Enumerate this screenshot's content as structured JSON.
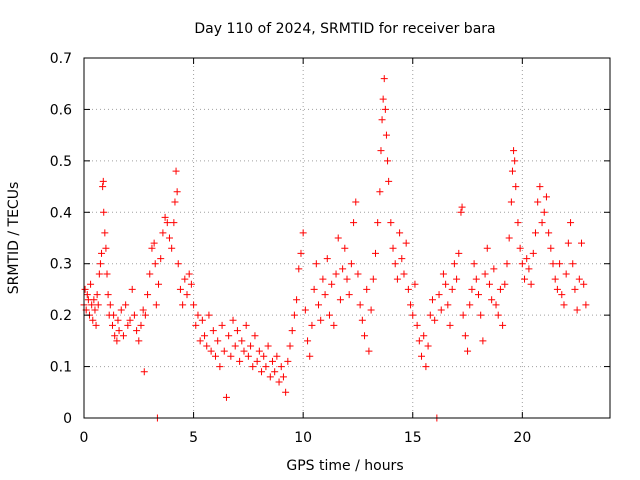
{
  "chart_data": {
    "type": "scatter",
    "title": "Day 110 of 2024, SRMTID for receiver bara",
    "xlabel": "GPS time / hours",
    "ylabel": "SRMTID / TECUs",
    "xlim": [
      0,
      24
    ],
    "ylim": [
      0,
      0.7
    ],
    "xticks": [
      0,
      5,
      10,
      15,
      20
    ],
    "yticks": [
      0,
      0.1,
      0.2,
      0.3,
      0.4,
      0.5,
      0.6,
      0.7
    ],
    "xtick_labels": [
      "0",
      "5",
      "10",
      "15",
      "20"
    ],
    "ytick_labels": [
      "0",
      "0.1",
      "0.2",
      "0.3",
      "0.4",
      "0.5",
      "0.6",
      "0.7"
    ],
    "grid": true,
    "marker": "+",
    "series": [
      {
        "name": "SRMTID",
        "color": "#ff0000",
        "points": [
          [
            0.0,
            0.22
          ],
          [
            0.05,
            0.25
          ],
          [
            0.1,
            0.21
          ],
          [
            0.15,
            0.24
          ],
          [
            0.2,
            0.23
          ],
          [
            0.25,
            0.2
          ],
          [
            0.3,
            0.26
          ],
          [
            0.35,
            0.22
          ],
          [
            0.4,
            0.19
          ],
          [
            0.45,
            0.23
          ],
          [
            0.5,
            0.21
          ],
          [
            0.55,
            0.18
          ],
          [
            0.6,
            0.24
          ],
          [
            0.65,
            0.22
          ],
          [
            0.7,
            0.28
          ],
          [
            0.75,
            0.3
          ],
          [
            0.8,
            0.32
          ],
          [
            0.85,
            0.45
          ],
          [
            0.88,
            0.46
          ],
          [
            0.9,
            0.4
          ],
          [
            0.95,
            0.36
          ],
          [
            1.0,
            0.33
          ],
          [
            1.05,
            0.28
          ],
          [
            1.1,
            0.24
          ],
          [
            1.15,
            0.2
          ],
          [
            1.2,
            0.22
          ],
          [
            1.3,
            0.18
          ],
          [
            1.35,
            0.2
          ],
          [
            1.4,
            0.16
          ],
          [
            1.5,
            0.15
          ],
          [
            1.55,
            0.19
          ],
          [
            1.6,
            0.17
          ],
          [
            1.7,
            0.21
          ],
          [
            1.8,
            0.16
          ],
          [
            1.9,
            0.22
          ],
          [
            2.0,
            0.18
          ],
          [
            2.1,
            0.19
          ],
          [
            2.2,
            0.25
          ],
          [
            2.3,
            0.2
          ],
          [
            2.4,
            0.17
          ],
          [
            2.5,
            0.15
          ],
          [
            2.6,
            0.18
          ],
          [
            2.7,
            0.21
          ],
          [
            2.75,
            0.09
          ],
          [
            2.8,
            0.2
          ],
          [
            2.9,
            0.24
          ],
          [
            3.0,
            0.28
          ],
          [
            3.1,
            0.33
          ],
          [
            3.2,
            0.34
          ],
          [
            3.25,
            0.3
          ],
          [
            3.3,
            0.22
          ],
          [
            3.35,
            0.0
          ],
          [
            3.4,
            0.26
          ],
          [
            3.5,
            0.31
          ],
          [
            3.6,
            0.36
          ],
          [
            3.7,
            0.39
          ],
          [
            3.8,
            0.38
          ],
          [
            3.9,
            0.35
          ],
          [
            4.0,
            0.33
          ],
          [
            4.1,
            0.38
          ],
          [
            4.15,
            0.42
          ],
          [
            4.2,
            0.48
          ],
          [
            4.25,
            0.44
          ],
          [
            4.3,
            0.3
          ],
          [
            4.4,
            0.25
          ],
          [
            4.5,
            0.22
          ],
          [
            4.6,
            0.27
          ],
          [
            4.7,
            0.24
          ],
          [
            4.8,
            0.28
          ],
          [
            4.9,
            0.26
          ],
          [
            5.0,
            0.22
          ],
          [
            5.1,
            0.18
          ],
          [
            5.2,
            0.2
          ],
          [
            5.3,
            0.15
          ],
          [
            5.4,
            0.19
          ],
          [
            5.5,
            0.16
          ],
          [
            5.6,
            0.14
          ],
          [
            5.7,
            0.2
          ],
          [
            5.8,
            0.13
          ],
          [
            5.9,
            0.17
          ],
          [
            6.0,
            0.12
          ],
          [
            6.1,
            0.15
          ],
          [
            6.2,
            0.1
          ],
          [
            6.3,
            0.18
          ],
          [
            6.4,
            0.13
          ],
          [
            6.5,
            0.04
          ],
          [
            6.6,
            0.16
          ],
          [
            6.7,
            0.12
          ],
          [
            6.8,
            0.19
          ],
          [
            6.9,
            0.14
          ],
          [
            7.0,
            0.17
          ],
          [
            7.1,
            0.11
          ],
          [
            7.2,
            0.15
          ],
          [
            7.3,
            0.13
          ],
          [
            7.4,
            0.18
          ],
          [
            7.5,
            0.12
          ],
          [
            7.6,
            0.14
          ],
          [
            7.7,
            0.1
          ],
          [
            7.8,
            0.16
          ],
          [
            7.9,
            0.11
          ],
          [
            8.0,
            0.13
          ],
          [
            8.1,
            0.09
          ],
          [
            8.2,
            0.12
          ],
          [
            8.3,
            0.1
          ],
          [
            8.4,
            0.14
          ],
          [
            8.5,
            0.08
          ],
          [
            8.6,
            0.11
          ],
          [
            8.7,
            0.09
          ],
          [
            8.8,
            0.12
          ],
          [
            8.9,
            0.07
          ],
          [
            9.0,
            0.1
          ],
          [
            9.1,
            0.08
          ],
          [
            9.2,
            0.05
          ],
          [
            9.3,
            0.11
          ],
          [
            9.4,
            0.14
          ],
          [
            9.5,
            0.17
          ],
          [
            9.6,
            0.2
          ],
          [
            9.7,
            0.23
          ],
          [
            9.8,
            0.29
          ],
          [
            9.9,
            0.32
          ],
          [
            10.0,
            0.36
          ],
          [
            10.1,
            0.21
          ],
          [
            10.2,
            0.15
          ],
          [
            10.3,
            0.12
          ],
          [
            10.4,
            0.18
          ],
          [
            10.5,
            0.25
          ],
          [
            10.6,
            0.3
          ],
          [
            10.7,
            0.22
          ],
          [
            10.8,
            0.19
          ],
          [
            10.9,
            0.27
          ],
          [
            11.0,
            0.24
          ],
          [
            11.1,
            0.31
          ],
          [
            11.2,
            0.2
          ],
          [
            11.3,
            0.26
          ],
          [
            11.4,
            0.18
          ],
          [
            11.5,
            0.28
          ],
          [
            11.6,
            0.35
          ],
          [
            11.7,
            0.23
          ],
          [
            11.8,
            0.29
          ],
          [
            11.9,
            0.33
          ],
          [
            12.0,
            0.27
          ],
          [
            12.1,
            0.24
          ],
          [
            12.2,
            0.3
          ],
          [
            12.3,
            0.38
          ],
          [
            12.4,
            0.42
          ],
          [
            12.5,
            0.28
          ],
          [
            12.6,
            0.22
          ],
          [
            12.7,
            0.19
          ],
          [
            12.8,
            0.16
          ],
          [
            12.9,
            0.25
          ],
          [
            13.0,
            0.13
          ],
          [
            13.1,
            0.21
          ],
          [
            13.2,
            0.27
          ],
          [
            13.3,
            0.32
          ],
          [
            13.4,
            0.38
          ],
          [
            13.5,
            0.44
          ],
          [
            13.55,
            0.52
          ],
          [
            13.6,
            0.58
          ],
          [
            13.65,
            0.62
          ],
          [
            13.7,
            0.66
          ],
          [
            13.75,
            0.6
          ],
          [
            13.8,
            0.55
          ],
          [
            13.85,
            0.5
          ],
          [
            13.9,
            0.46
          ],
          [
            14.0,
            0.38
          ],
          [
            14.1,
            0.33
          ],
          [
            14.2,
            0.3
          ],
          [
            14.3,
            0.27
          ],
          [
            14.4,
            0.36
          ],
          [
            14.5,
            0.31
          ],
          [
            14.6,
            0.28
          ],
          [
            14.7,
            0.34
          ],
          [
            14.8,
            0.25
          ],
          [
            14.9,
            0.22
          ],
          [
            15.0,
            0.2
          ],
          [
            15.1,
            0.26
          ],
          [
            15.2,
            0.18
          ],
          [
            15.3,
            0.15
          ],
          [
            15.4,
            0.12
          ],
          [
            15.5,
            0.16
          ],
          [
            15.6,
            0.1
          ],
          [
            15.7,
            0.14
          ],
          [
            15.8,
            0.2
          ],
          [
            15.9,
            0.23
          ],
          [
            16.0,
            0.19
          ],
          [
            16.1,
            0.0
          ],
          [
            16.2,
            0.24
          ],
          [
            16.3,
            0.21
          ],
          [
            16.4,
            0.28
          ],
          [
            16.5,
            0.26
          ],
          [
            16.6,
            0.22
          ],
          [
            16.7,
            0.18
          ],
          [
            16.8,
            0.25
          ],
          [
            16.9,
            0.3
          ],
          [
            17.0,
            0.27
          ],
          [
            17.1,
            0.32
          ],
          [
            17.2,
            0.4
          ],
          [
            17.25,
            0.41
          ],
          [
            17.3,
            0.2
          ],
          [
            17.4,
            0.16
          ],
          [
            17.5,
            0.13
          ],
          [
            17.6,
            0.22
          ],
          [
            17.7,
            0.25
          ],
          [
            17.8,
            0.3
          ],
          [
            17.9,
            0.27
          ],
          [
            18.0,
            0.24
          ],
          [
            18.1,
            0.2
          ],
          [
            18.2,
            0.15
          ],
          [
            18.3,
            0.28
          ],
          [
            18.4,
            0.33
          ],
          [
            18.5,
            0.26
          ],
          [
            18.6,
            0.23
          ],
          [
            18.7,
            0.29
          ],
          [
            18.8,
            0.22
          ],
          [
            18.9,
            0.2
          ],
          [
            19.0,
            0.25
          ],
          [
            19.1,
            0.18
          ],
          [
            19.2,
            0.26
          ],
          [
            19.3,
            0.3
          ],
          [
            19.4,
            0.35
          ],
          [
            19.5,
            0.42
          ],
          [
            19.55,
            0.48
          ],
          [
            19.6,
            0.52
          ],
          [
            19.65,
            0.5
          ],
          [
            19.7,
            0.45
          ],
          [
            19.8,
            0.38
          ],
          [
            19.9,
            0.33
          ],
          [
            20.0,
            0.3
          ],
          [
            20.1,
            0.27
          ],
          [
            20.2,
            0.31
          ],
          [
            20.3,
            0.29
          ],
          [
            20.4,
            0.26
          ],
          [
            20.5,
            0.32
          ],
          [
            20.6,
            0.36
          ],
          [
            20.7,
            0.42
          ],
          [
            20.8,
            0.45
          ],
          [
            20.9,
            0.38
          ],
          [
            21.0,
            0.4
          ],
          [
            21.1,
            0.43
          ],
          [
            21.2,
            0.36
          ],
          [
            21.3,
            0.33
          ],
          [
            21.4,
            0.3
          ],
          [
            21.5,
            0.27
          ],
          [
            21.6,
            0.25
          ],
          [
            21.7,
            0.3
          ],
          [
            21.8,
            0.24
          ],
          [
            21.9,
            0.22
          ],
          [
            22.0,
            0.28
          ],
          [
            22.1,
            0.34
          ],
          [
            22.2,
            0.38
          ],
          [
            22.3,
            0.3
          ],
          [
            22.4,
            0.25
          ],
          [
            22.5,
            0.21
          ],
          [
            22.6,
            0.27
          ],
          [
            22.7,
            0.34
          ],
          [
            22.8,
            0.26
          ],
          [
            22.9,
            0.22
          ]
        ]
      }
    ]
  }
}
